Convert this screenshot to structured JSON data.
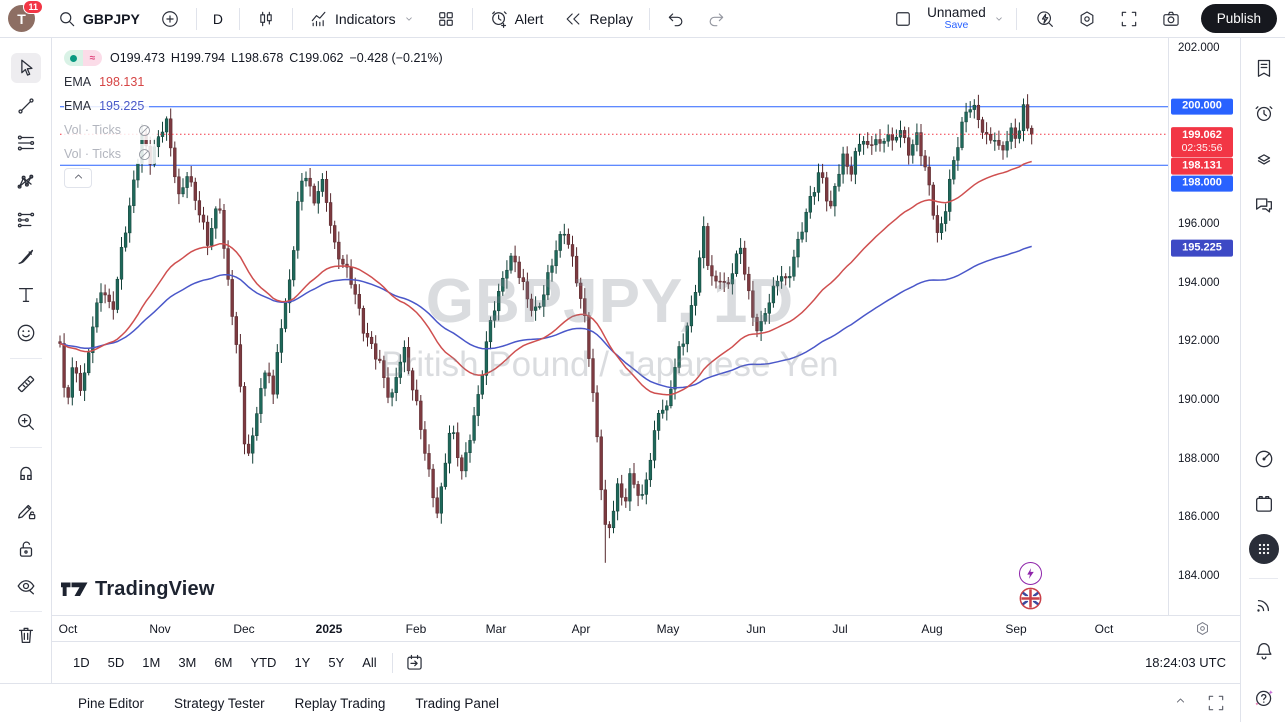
{
  "topbar": {
    "avatar_letter": "T",
    "badge_count": "11",
    "symbol": "GBPJPY",
    "interval": "D",
    "indicators_label": "Indicators",
    "alert_label": "Alert",
    "replay_label": "Replay",
    "layout_name": "Unnamed",
    "save_label": "Save",
    "publish_label": "Publish"
  },
  "legend": {
    "status_pill": {
      "dot_color": "#089981",
      "right_symbol": "≈"
    },
    "ohlc": {
      "o_label": "O",
      "o": "199.473",
      "h_label": "H",
      "h": "199.794",
      "l_label": "L",
      "l": "198.678",
      "c_label": "C",
      "c": "199.062",
      "change": "−0.428 (−0.21%)"
    },
    "indicators": [
      {
        "label": "EMA",
        "value": "198.131",
        "value_color": "#d64545",
        "hidden": false
      },
      {
        "label": "EMA",
        "value": "195.225",
        "value_color": "#4a5ac9",
        "hidden": false
      },
      {
        "label": "Vol · Ticks",
        "value": "",
        "hidden": true
      },
      {
        "label": "Vol · Ticks",
        "value": "",
        "hidden": true
      }
    ]
  },
  "watermark": {
    "title": "GBPJPY, 1D",
    "subtitle": "British Pound / Japanese Yen"
  },
  "logo_text": "TradingView",
  "price_axis": {
    "plain_labels": [
      "202.000",
      "196.000",
      "194.000",
      "192.000",
      "190.000",
      "188.000",
      "186.000",
      "184.000"
    ],
    "plain_prices": [
      202,
      196,
      194,
      192,
      190,
      188,
      186,
      184
    ],
    "badges": [
      {
        "text": "200.000",
        "price": 200.0,
        "bg": "#2962ff",
        "kind": "horizontal-line-label"
      },
      {
        "text": "199.062",
        "sub": "02:35:56",
        "price": 199.062,
        "bg": "#f23645",
        "kind": "last-price-countdown-label"
      },
      {
        "text": "198.131",
        "price": 198.131,
        "bg": "#f23645",
        "kind": "ema-red-label"
      },
      {
        "text": "198.000",
        "price": 198.0,
        "bg": "#2962ff",
        "kind": "horizontal-line-label"
      },
      {
        "text": "195.225",
        "price": 195.225,
        "bg": "#3d49c5",
        "kind": "ema-blue-label"
      }
    ]
  },
  "time_axis": {
    "labels": [
      "Oct",
      "Nov",
      "Dec",
      "2025",
      "Feb",
      "Mar",
      "Apr",
      "May",
      "Jun",
      "Jul",
      "Aug",
      "Sep",
      "Oct"
    ],
    "bold_index": 3
  },
  "ranges": [
    "1D",
    "5D",
    "1M",
    "3M",
    "6M",
    "YTD",
    "1Y",
    "5Y",
    "All"
  ],
  "clock": "18:24:03 UTC",
  "bottom_tabs": [
    "Pine Editor",
    "Strategy Tester",
    "Replay Trading",
    "Trading Panel"
  ],
  "left_toolbar": [
    {
      "name": "cursor-tool",
      "icon": "cursor",
      "active": true
    },
    {
      "name": "trend-line-tool",
      "icon": "trend"
    },
    {
      "name": "fib-retracement-tool",
      "icon": "fib"
    },
    {
      "name": "xabcd-pattern-tool",
      "icon": "pattern"
    },
    {
      "name": "projection-tool",
      "icon": "projection"
    },
    {
      "name": "brush-tool",
      "icon": "brush"
    },
    {
      "name": "text-tool",
      "icon": "text"
    },
    {
      "name": "emoji-tool",
      "icon": "emoji"
    },
    {
      "name": "measure-ruler-tool",
      "icon": "ruler"
    },
    {
      "name": "zoom-in-tool",
      "icon": "zoomin"
    },
    {
      "name": "magnet-mode-tool",
      "icon": "magnet"
    },
    {
      "name": "stay-in-drawing-mode-tool",
      "icon": "pencillock"
    },
    {
      "name": "lock-all-drawings-tool",
      "icon": "lock"
    },
    {
      "name": "hide-all-drawings-tool",
      "icon": "eyecross"
    },
    {
      "name": "remove-objects-tool",
      "icon": "trash"
    }
  ],
  "right_toolbar": [
    {
      "name": "watchlist-panel-button",
      "icon": "watchlist"
    },
    {
      "name": "alerts-panel-button",
      "icon": "alarm"
    },
    {
      "name": "object-tree-panel-button",
      "icon": "layers"
    },
    {
      "name": "chats-panel-button",
      "icon": "chats"
    },
    {
      "name": "ideas-stream-button",
      "icon": "radar"
    },
    {
      "name": "calendar-panel-button",
      "icon": "calendar"
    },
    {
      "name": "more-apps-button",
      "icon": "apps"
    },
    {
      "name": "streams-button",
      "icon": "signal"
    },
    {
      "name": "notifications-button",
      "icon": "bell"
    },
    {
      "name": "help-button",
      "icon": "help"
    }
  ],
  "chart_data": {
    "type": "candlestick",
    "symbol": "GBPJPY",
    "interval": "1D",
    "title": "GBPJPY, 1D",
    "subtitle": "British Pound / Japanese Yen",
    "ylim": [
      183.3,
      202.4
    ],
    "y_ticks": [
      202,
      200,
      198,
      196,
      194,
      192,
      190,
      188,
      186,
      184
    ],
    "x_categories_months": [
      "Oct",
      "Nov",
      "Dec",
      "2025",
      "Feb",
      "Mar",
      "Apr",
      "May",
      "Jun",
      "Jul",
      "Aug",
      "Sep",
      "Oct"
    ],
    "last_ohlc": {
      "open": 199.473,
      "high": 199.794,
      "low": 198.678,
      "close": 199.062,
      "change": -0.428,
      "change_pct": -0.21
    },
    "current_price": 199.062,
    "session_low_extreme": 184.45,
    "horizontal_lines": [
      {
        "price": 200.0,
        "color": "#2962ff"
      },
      {
        "price": 198.0,
        "color": "#2962ff"
      }
    ],
    "emas": [
      {
        "color": "#cf4f4f",
        "period": 50,
        "last_value": 198.131
      },
      {
        "color": "#4a57c9",
        "period": 90,
        "last_value": 195.225
      }
    ],
    "colors": {
      "up_fill": "#1e685a",
      "up_stroke": "#123f37",
      "down_fill": "#7d3a40",
      "down_stroke": "#55272c"
    },
    "close_path_anchors": [
      [
        60,
        191.8
      ],
      [
        66,
        189.7
      ],
      [
        74,
        191.2
      ],
      [
        82,
        190.3
      ],
      [
        92,
        192.5
      ],
      [
        102,
        193.8
      ],
      [
        112,
        192.9
      ],
      [
        122,
        195.3
      ],
      [
        132,
        197.0
      ],
      [
        142,
        198.9
      ],
      [
        150,
        198.2
      ],
      [
        158,
        199.0
      ],
      [
        166,
        199.6
      ],
      [
        172,
        198.2
      ],
      [
        180,
        196.6
      ],
      [
        186,
        197.9
      ],
      [
        194,
        197.1
      ],
      [
        202,
        196.1
      ],
      [
        208,
        195.2
      ],
      [
        214,
        196.2
      ],
      [
        220,
        196.6
      ],
      [
        226,
        194.6
      ],
      [
        232,
        193.1
      ],
      [
        238,
        191.4
      ],
      [
        244,
        188.6
      ],
      [
        250,
        187.9
      ],
      [
        256,
        189.6
      ],
      [
        262,
        190.6
      ],
      [
        268,
        191.3
      ],
      [
        273,
        190.0
      ],
      [
        279,
        192.1
      ],
      [
        286,
        193.2
      ],
      [
        292,
        194.7
      ],
      [
        298,
        196.8
      ],
      [
        304,
        198.0
      ],
      [
        309,
        197.2
      ],
      [
        315,
        196.6
      ],
      [
        321,
        197.5
      ],
      [
        327,
        196.8
      ],
      [
        334,
        195.4
      ],
      [
        342,
        194.7
      ],
      [
        350,
        194.1
      ],
      [
        357,
        193.3
      ],
      [
        364,
        192.4
      ],
      [
        372,
        191.9
      ],
      [
        380,
        191.2
      ],
      [
        386,
        190.3
      ],
      [
        391,
        189.9
      ],
      [
        397,
        190.9
      ],
      [
        403,
        192.0
      ],
      [
        409,
        191.0
      ],
      [
        415,
        190.1
      ],
      [
        421,
        188.9
      ],
      [
        427,
        187.8
      ],
      [
        433,
        186.8
      ],
      [
        438,
        186.2
      ],
      [
        443,
        187.4
      ],
      [
        449,
        188.9
      ],
      [
        455,
        188.6
      ],
      [
        461,
        187.4
      ],
      [
        466,
        188.1
      ],
      [
        472,
        189.2
      ],
      [
        479,
        190.3
      ],
      [
        486,
        191.8
      ],
      [
        492,
        192.8
      ],
      [
        499,
        193.6
      ],
      [
        506,
        194.6
      ],
      [
        513,
        195.0
      ],
      [
        520,
        194.2
      ],
      [
        527,
        193.4
      ],
      [
        534,
        192.9
      ],
      [
        541,
        193.4
      ],
      [
        548,
        194.3
      ],
      [
        556,
        195.1
      ],
      [
        564,
        195.7
      ],
      [
        571,
        195.0
      ],
      [
        578,
        194.0
      ],
      [
        585,
        192.8
      ],
      [
        591,
        190.9
      ],
      [
        597,
        188.6
      ],
      [
        602,
        186.7
      ],
      [
        607,
        185.1
      ],
      [
        612,
        186.2
      ],
      [
        618,
        187.2
      ],
      [
        624,
        186.4
      ],
      [
        630,
        187.3
      ],
      [
        636,
        186.9
      ],
      [
        642,
        186.6
      ],
      [
        648,
        187.7
      ],
      [
        654,
        188.8
      ],
      [
        660,
        189.9
      ],
      [
        666,
        189.4
      ],
      [
        672,
        190.6
      ],
      [
        678,
        191.6
      ],
      [
        684,
        192.2
      ],
      [
        691,
        193.1
      ],
      [
        698,
        194.2
      ],
      [
        703,
        195.9
      ],
      [
        708,
        194.6
      ],
      [
        714,
        193.9
      ],
      [
        720,
        194.3
      ],
      [
        727,
        193.8
      ],
      [
        734,
        194.6
      ],
      [
        741,
        195.1
      ],
      [
        747,
        193.9
      ],
      [
        753,
        192.9
      ],
      [
        759,
        192.4
      ],
      [
        766,
        193.1
      ],
      [
        773,
        193.6
      ],
      [
        780,
        194.3
      ],
      [
        787,
        194.0
      ],
      [
        793,
        194.9
      ],
      [
        800,
        195.6
      ],
      [
        807,
        196.4
      ],
      [
        814,
        197.1
      ],
      [
        820,
        197.9
      ],
      [
        826,
        197.1
      ],
      [
        831,
        196.6
      ],
      [
        837,
        197.6
      ],
      [
        843,
        198.2
      ],
      [
        850,
        197.6
      ],
      [
        857,
        198.6
      ],
      [
        863,
        199.1
      ],
      [
        869,
        198.5
      ],
      [
        875,
        199.0
      ],
      [
        881,
        198.4
      ],
      [
        887,
        199.2
      ],
      [
        893,
        198.7
      ],
      [
        899,
        199.5
      ],
      [
        904,
        198.9
      ],
      [
        910,
        198.3
      ],
      [
        916,
        199.0
      ],
      [
        921,
        198.4
      ],
      [
        927,
        197.7
      ],
      [
        933,
        196.6
      ],
      [
        938,
        195.6
      ],
      [
        944,
        196.2
      ],
      [
        950,
        197.4
      ],
      [
        956,
        198.4
      ],
      [
        962,
        199.4
      ],
      [
        967,
        200.0
      ],
      [
        972,
        200.2
      ],
      [
        977,
        199.7
      ],
      [
        982,
        199.2
      ],
      [
        988,
        198.7
      ],
      [
        994,
        199.0
      ],
      [
        1000,
        198.5
      ],
      [
        1006,
        198.9
      ],
      [
        1012,
        199.2
      ],
      [
        1018,
        198.8
      ],
      [
        1023,
        199.9
      ],
      [
        1028,
        199.3
      ],
      [
        1035,
        199.06
      ]
    ]
  }
}
